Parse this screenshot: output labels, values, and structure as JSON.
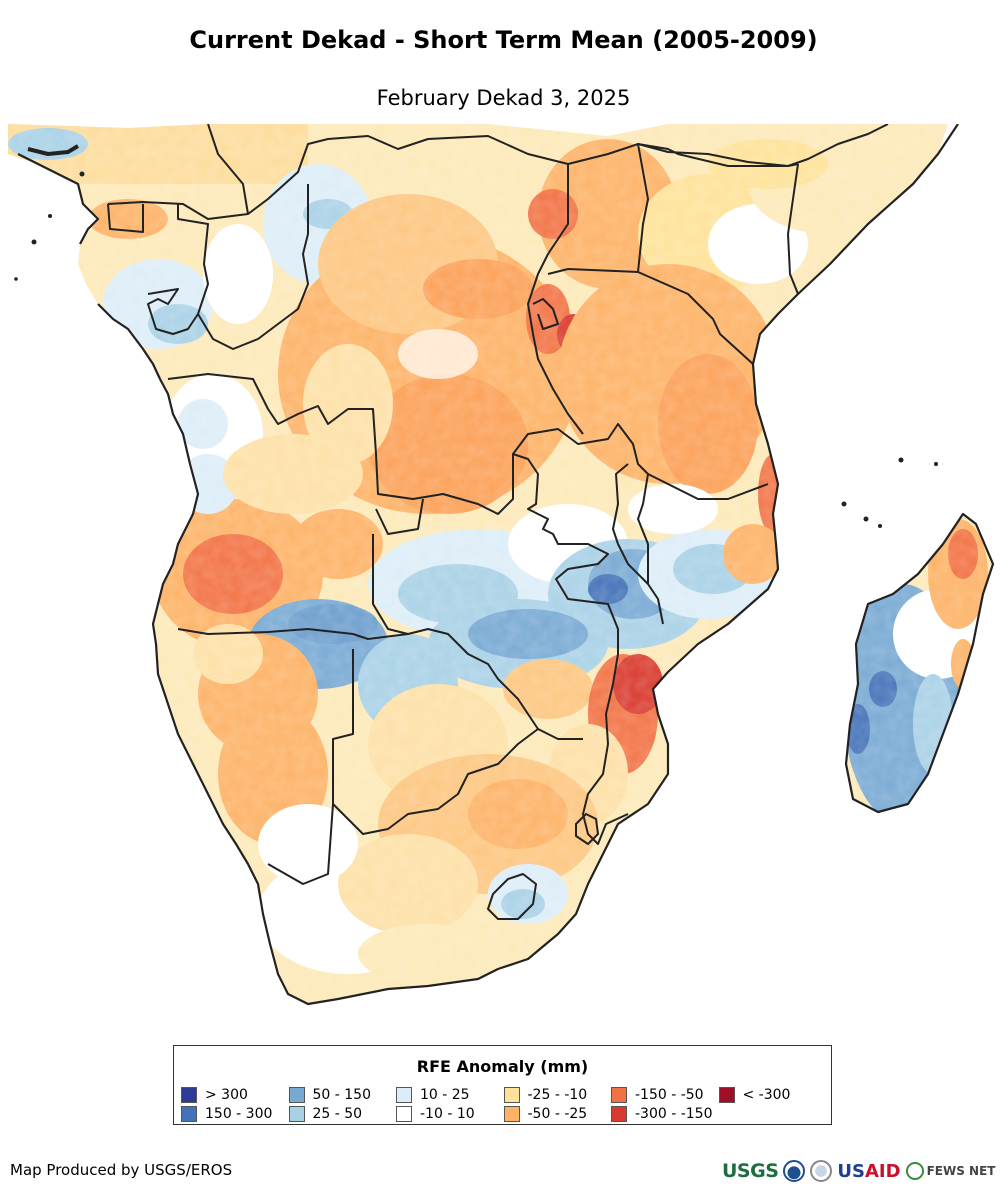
{
  "title": "Current Dekad - Short Term Mean (2005-2009)",
  "subtitle": "February Dekad 3, 2025",
  "legend": {
    "title": "RFE Anomaly (mm)",
    "items": [
      {
        "label": "> 300",
        "color": "#2e3b96"
      },
      {
        "label": "150 - 300",
        "color": "#4472b8"
      },
      {
        "label": "50 - 150",
        "color": "#78a9d3"
      },
      {
        "label": "25 - 50",
        "color": "#a9d1e6"
      },
      {
        "label": "10 - 25",
        "color": "#dcedf7"
      },
      {
        "label": "-10 - 10",
        "color": "#ffffff"
      },
      {
        "label": "-25 - -10",
        "color": "#fee298"
      },
      {
        "label": "-50 - -25",
        "color": "#fdb266"
      },
      {
        "label": "-150 - -50",
        "color": "#f27244"
      },
      {
        "label": "-300 - -150",
        "color": "#d93a2e"
      },
      {
        "label": "< -300",
        "color": "#a00e28"
      }
    ]
  },
  "credit": "Map Produced by USGS/EROS",
  "logos": {
    "usgs": "USGS",
    "usaid_us": "US",
    "usaid_aid": "AID",
    "fews": "FEWS NET"
  }
}
